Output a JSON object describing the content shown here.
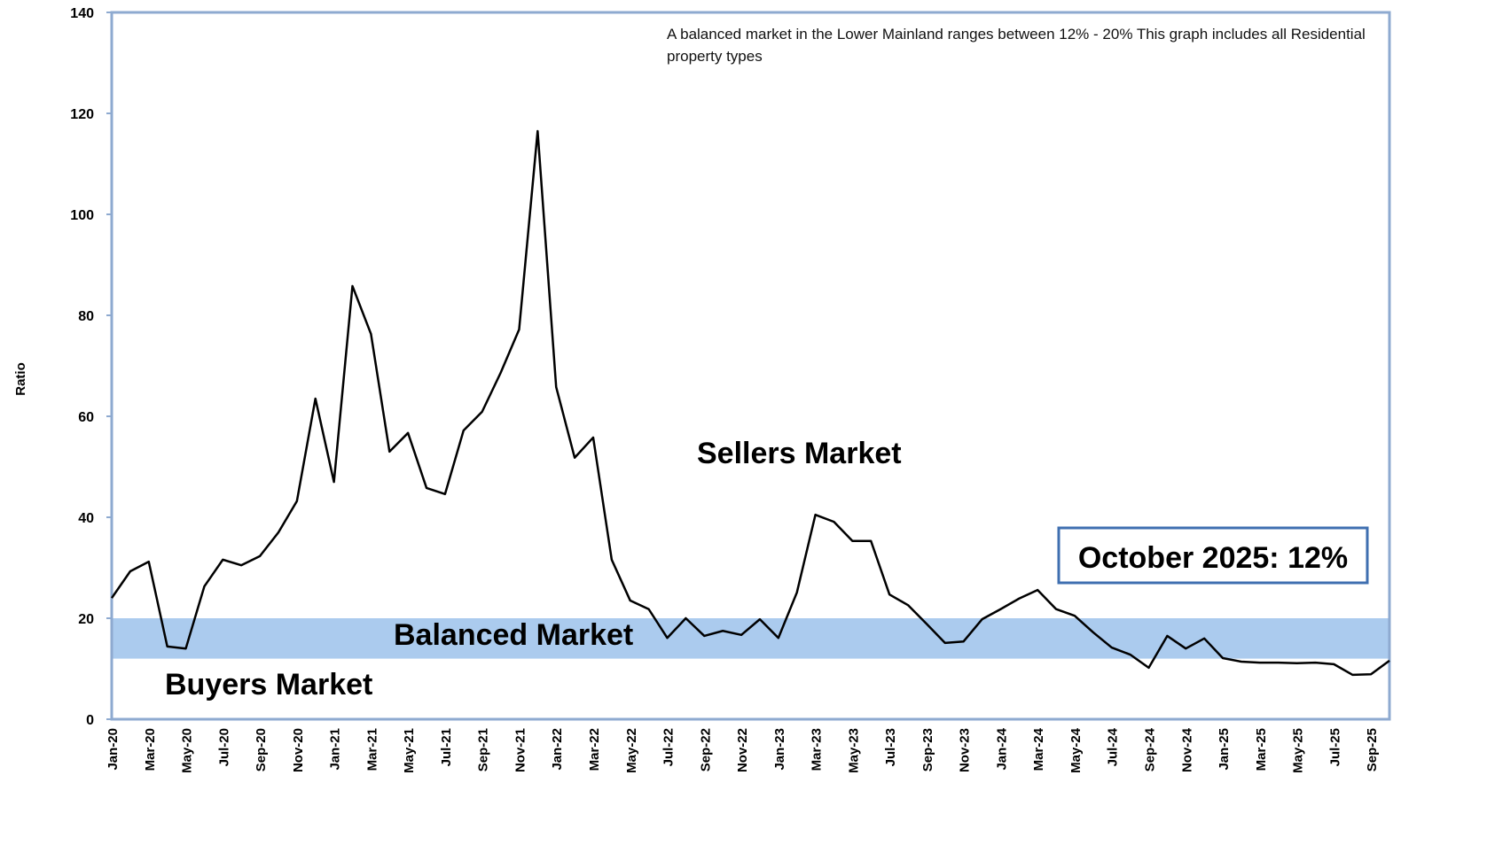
{
  "chart_data": {
    "type": "line",
    "y_label": "Ratio",
    "note": "A balanced market in the Lower Mainland ranges between 12% - 20% This graph includes all Residential property types",
    "annotations": [
      "Sellers Market",
      "Buyers Market"
    ],
    "callout": "October 2025: 12%",
    "band": {
      "label": "Balanced Market",
      "from": 12,
      "to": 20,
      "color": "#abcbee"
    },
    "categories": [
      "Jan-20",
      null,
      "Mar-20",
      null,
      "May-20",
      null,
      "Jul-20",
      null,
      "Sep-20",
      null,
      "Nov-20",
      null,
      "Jan-21",
      null,
      "Mar-21",
      null,
      "May-21",
      null,
      "Jul-21",
      null,
      "Sep-21",
      null,
      "Nov-21",
      null,
      "Jan-22",
      null,
      "Mar-22",
      null,
      "May-22",
      null,
      "Jul-22",
      null,
      "Sep-22",
      null,
      "Nov-22",
      null,
      "Jan-23",
      null,
      "Mar-23",
      null,
      "May-23",
      null,
      "Jul-23",
      null,
      "Sep-23",
      null,
      "Nov-23",
      null,
      "Jan-24",
      null,
      "Mar-24",
      null,
      "May-24",
      null,
      "Jul-24",
      null,
      "Sep-24",
      null,
      "Nov-24",
      null,
      "Jan-25",
      null,
      "Mar-25",
      null,
      "May-25",
      null,
      "Jul-25",
      null,
      "Sep-25",
      null
    ],
    "series": [
      {
        "color": "#000000",
        "values": [
          24,
          29.3,
          31.2,
          14.4,
          14,
          26.3,
          31.6,
          30.5,
          32.3,
          37,
          43.2,
          63.5,
          47,
          85.8,
          76.3,
          53,
          56.7,
          45.8,
          44.6,
          57.2,
          60.9,
          68.6,
          77.2,
          116.5,
          65.8,
          51.8,
          55.8,
          31.6,
          23.5,
          21.8,
          16.1,
          20,
          16.5,
          17.5,
          16.7,
          19.8,
          16.1,
          25.1,
          40.5,
          39.1,
          35.3,
          35.3,
          24.7,
          22.6,
          18.9,
          15.1,
          15.4,
          19.8,
          21.8,
          23.9,
          25.6,
          21.8,
          20.5,
          17.2,
          14.2,
          12.8,
          10.2,
          16.5,
          14,
          16,
          12.1,
          11.4,
          11.2,
          11.2,
          11.1,
          11.2,
          10.9,
          8.8,
          8.9,
          11.6
        ]
      }
    ],
    "ylim": [
      0,
      140
    ],
    "yticks": [
      0,
      20,
      40,
      60,
      80,
      100,
      120,
      140
    ],
    "grid": false
  }
}
